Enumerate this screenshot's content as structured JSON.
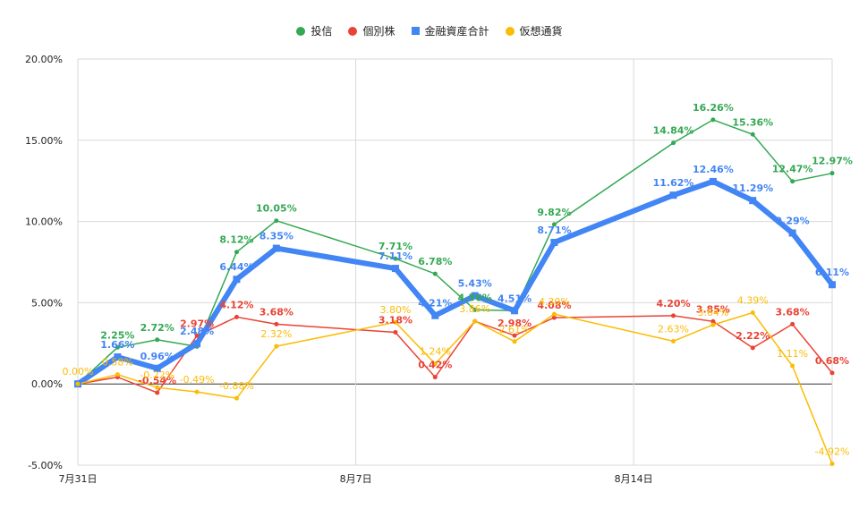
{
  "chart_data": {
    "type": "line",
    "title": "",
    "xlabel": "",
    "ylabel": "",
    "ylim": [
      -5,
      20
    ],
    "yticks": [
      -5,
      0,
      5,
      10,
      15,
      20
    ],
    "ytick_labels": [
      "-5.00%",
      "0.00%",
      "5.00%",
      "10.00%",
      "15.00%",
      "20.00%"
    ],
    "x": [
      0,
      1,
      2,
      3,
      4,
      5,
      8,
      9,
      10,
      11,
      12,
      15,
      16,
      17,
      18,
      19
    ],
    "xlim": [
      0,
      19
    ],
    "xticks": [
      0,
      7,
      14
    ],
    "xtick_labels": [
      "7月31日",
      "8月7日",
      "8月14日"
    ],
    "grid": true,
    "legend_position": "top-center",
    "series": [
      {
        "name": "投信",
        "color": "#34a853",
        "marker": "circle",
        "values": [
          0.0,
          2.25,
          2.72,
          2.3,
          8.12,
          10.05,
          7.71,
          6.78,
          4.56,
          4.51,
          9.82,
          14.84,
          16.26,
          15.36,
          12.47,
          12.97
        ],
        "labels": [
          "",
          "2.25%",
          "2.72%",
          "",
          "8.12%",
          "10.05%",
          "7.71%",
          "6.78%",
          "4.56%",
          "",
          "9.82%",
          "14.84%",
          "16.26%",
          "15.36%",
          "12.47%",
          "12.97%"
        ]
      },
      {
        "name": "個別株",
        "color": "#ea4335",
        "marker": "circle",
        "values": [
          0.0,
          0.42,
          -0.54,
          2.97,
          4.12,
          3.68,
          3.18,
          0.42,
          3.86,
          2.98,
          4.08,
          4.2,
          3.85,
          2.22,
          3.68,
          0.68
        ],
        "labels": [
          "",
          "",
          "-0.54%",
          "2.97%",
          "4.12%",
          "3.68%",
          "3.18%",
          "0.42%",
          "",
          "2.98%",
          "4.08%",
          "4.20%",
          "3.85%",
          "2.22%",
          "3.68%",
          "0.68%"
        ]
      },
      {
        "name": "金融資産合計",
        "color": "#4285f4",
        "marker": "square",
        "values": [
          0.0,
          1.66,
          0.96,
          2.48,
          6.44,
          8.35,
          7.11,
          4.21,
          5.43,
          4.51,
          8.71,
          11.62,
          12.46,
          11.29,
          9.29,
          6.11
        ],
        "labels": [
          "",
          "1.66%",
          "0.96%",
          "2.48%",
          "6.44%",
          "8.35%",
          "7.11%",
          "4.21%",
          "5.43%",
          "4.51%",
          "8.71%",
          "11.62%",
          "12.46%",
          "11.29%",
          "9.29%",
          "6.11%"
        ]
      },
      {
        "name": "仮想通貨",
        "color": "#fbbc04",
        "marker": "circle",
        "values": [
          0.0,
          0.58,
          -0.22,
          -0.49,
          -0.88,
          2.32,
          3.8,
          1.24,
          3.86,
          2.61,
          4.3,
          2.63,
          3.64,
          4.39,
          1.11,
          -4.92
        ],
        "labels": [
          "0.00%",
          "0.58%",
          "-0.22%",
          "-0.49%",
          "-0.88%",
          "2.32%",
          "3.80%",
          "1.24%",
          "3.86%",
          "2.61%",
          "4.30%",
          "2.63%",
          "3.64%",
          "4.39%",
          "1.11%",
          "-4.92%"
        ]
      }
    ]
  }
}
